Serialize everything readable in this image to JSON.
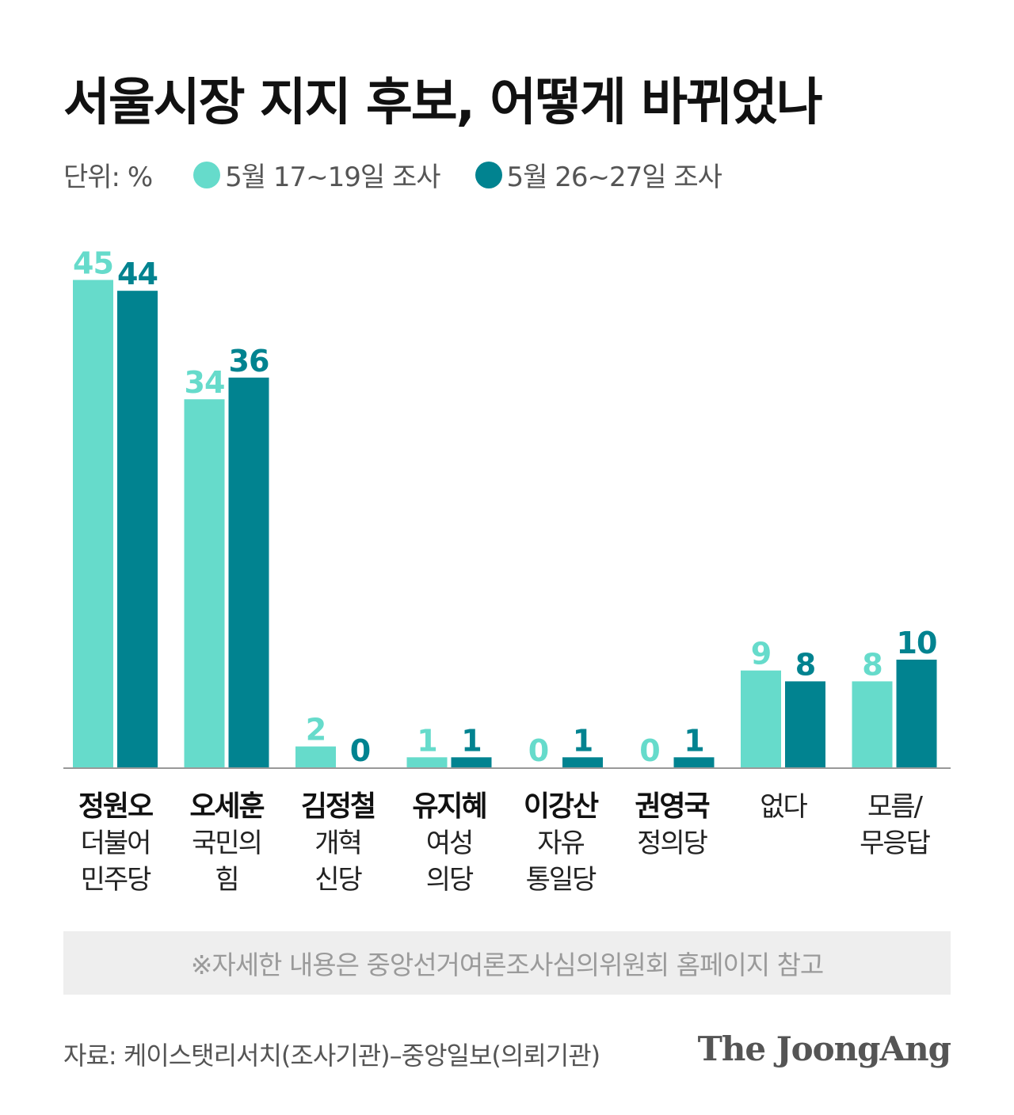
{
  "title": "서울시장 지지 후보, 어떻게 바뀌었나",
  "unit_label": "단위: %",
  "legend": [
    {
      "label": "5월 17~19일 조사",
      "color": "#66dbcb"
    },
    {
      "label": "5월 26~27일 조사",
      "color": "#018390"
    }
  ],
  "chart_data": {
    "type": "bar",
    "categories": [
      {
        "name": "정원오",
        "party": [
          "더불어",
          "민주당"
        ]
      },
      {
        "name": "오세훈",
        "party": [
          "국민의",
          "힘"
        ]
      },
      {
        "name": "김정철",
        "party": [
          "개혁",
          "신당"
        ]
      },
      {
        "name": "유지혜",
        "party": [
          "여성",
          "의당"
        ]
      },
      {
        "name": "이강산",
        "party": [
          "자유",
          "통일당"
        ]
      },
      {
        "name": "권영국",
        "party": [
          "정의당"
        ]
      },
      {
        "name": "",
        "party": [
          "없다"
        ]
      },
      {
        "name": "",
        "party": [
          "모름/",
          "무응답"
        ]
      }
    ],
    "series": [
      {
        "name": "5월 17~19일 조사",
        "color": "#66dbcb",
        "values": [
          45,
          34,
          2,
          1,
          0,
          0,
          9,
          8
        ]
      },
      {
        "name": "5월 26~27일 조사",
        "color": "#018390",
        "values": [
          44,
          36,
          0,
          1,
          1,
          1,
          8,
          10
        ]
      }
    ],
    "ylim": [
      0,
      45
    ]
  },
  "note": "※자세한 내용은 중앙선거여론조사심의위원회 홈페이지 참고",
  "source": "자료: 케이스탯리서치(조사기관)–중앙일보(의뢰기관)",
  "logo": "The JoongAng"
}
